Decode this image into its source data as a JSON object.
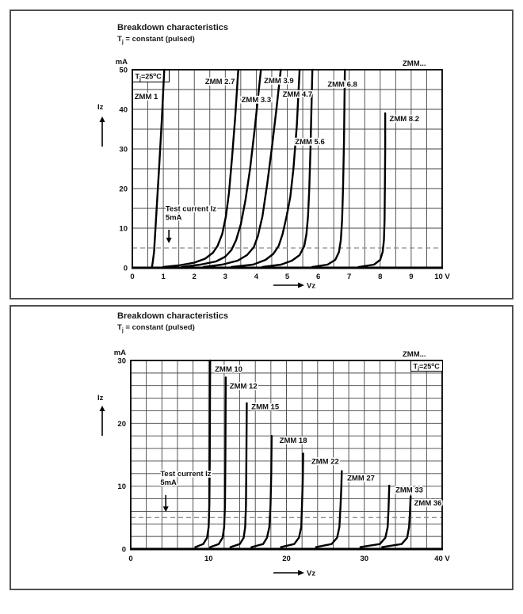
{
  "page": {
    "background": "#ffffff",
    "frame_color": "#4f4f4f",
    "curve_color": "#000000",
    "grid_color": "#454545",
    "dashed_color": "#8c8c8c"
  },
  "panels": [
    {
      "title": "Breakdown characteristics",
      "subtitle": {
        "pre": "T",
        "sub": "j",
        "post": " = constant (pulsed)"
      }
    },
    {
      "title": "Breakdown characteristics",
      "subtitle": {
        "pre": "T",
        "sub": "j",
        "post": " = constant (pulsed)"
      }
    }
  ],
  "chart_data": [
    {
      "type": "line",
      "title": "Breakdown characteristics",
      "subtitle": "Tj = constant (pulsed)",
      "xlabel": "Vz",
      "ylabel": "Iz",
      "x_unit": "V",
      "y_unit": "mA",
      "xlim": [
        0,
        10
      ],
      "ylim": [
        0,
        50
      ],
      "x_grid_step": 0.5,
      "y_grid_step": 5,
      "grid": true,
      "x_ticks": [
        {
          "v": 0,
          "label": "0"
        },
        {
          "v": 1,
          "label": "1"
        },
        {
          "v": 2,
          "label": "2"
        },
        {
          "v": 3,
          "label": "3"
        },
        {
          "v": 4,
          "label": "4"
        },
        {
          "v": 5,
          "label": "5"
        },
        {
          "v": 6,
          "label": "6"
        },
        {
          "v": 7,
          "label": "7"
        },
        {
          "v": 8,
          "label": "8"
        },
        {
          "v": 9,
          "label": "9"
        },
        {
          "v": 10,
          "label": "10"
        }
      ],
      "y_ticks": [
        {
          "v": 0,
          "label": "0"
        },
        {
          "v": 10,
          "label": "10"
        },
        {
          "v": 20,
          "label": "20"
        },
        {
          "v": 30,
          "label": "30"
        },
        {
          "v": 40,
          "label": "40"
        },
        {
          "v": 50,
          "label": "50"
        }
      ],
      "family_label": "ZMM...",
      "temperature_label": {
        "pre": "T",
        "sub": "j",
        "mid": "=25",
        "sup": "o",
        "post": "C",
        "corner": "top-left"
      },
      "test_current": {
        "line1": "Test current Iz",
        "line2": "5mA",
        "y": 5,
        "text_x": 1.07,
        "text_y": 14.3,
        "arrow_x": 1.18,
        "arrow_y1": 9.6,
        "arrow_y2": 6.2
      },
      "series": [
        {
          "name": "ZMM 1",
          "label_x": 0.07,
          "label_y": 43.2,
          "points": [
            [
              0.63,
              0
            ],
            [
              0.66,
              1.5
            ],
            [
              0.7,
              4
            ],
            [
              0.74,
              9
            ],
            [
              0.8,
              17
            ],
            [
              0.87,
              26
            ],
            [
              0.95,
              37
            ],
            [
              1.03,
              50
            ]
          ]
        },
        {
          "name": "ZMM 2.7",
          "label_x": 2.35,
          "label_y": 47.0,
          "points": [
            [
              1.0,
              0.2
            ],
            [
              1.5,
              0.6
            ],
            [
              2.0,
              1.3
            ],
            [
              2.35,
              2.3
            ],
            [
              2.6,
              3.8
            ],
            [
              2.75,
              5.5
            ],
            [
              2.9,
              8.5
            ],
            [
              3.02,
              13
            ],
            [
              3.12,
              19
            ],
            [
              3.22,
              28
            ],
            [
              3.32,
              38
            ],
            [
              3.42,
              50
            ]
          ]
        },
        {
          "name": "ZMM 3.3",
          "label_x": 3.52,
          "label_y": 42.4,
          "points": [
            [
              1.6,
              0.2
            ],
            [
              2.2,
              0.8
            ],
            [
              2.7,
              1.6
            ],
            [
              3.0,
              2.8
            ],
            [
              3.2,
              4.5
            ],
            [
              3.35,
              7
            ],
            [
              3.5,
              11
            ],
            [
              3.65,
              17
            ],
            [
              3.8,
              25
            ],
            [
              3.95,
              35
            ],
            [
              4.15,
              50
            ]
          ]
        },
        {
          "name": "ZMM 3.9",
          "label_x": 4.25,
          "label_y": 47.2,
          "points": [
            [
              2.3,
              0.2
            ],
            [
              2.9,
              0.8
            ],
            [
              3.4,
              1.8
            ],
            [
              3.7,
              3.2
            ],
            [
              3.92,
              5.2
            ],
            [
              4.05,
              8
            ],
            [
              4.2,
              13
            ],
            [
              4.35,
              21
            ],
            [
              4.5,
              30
            ],
            [
              4.65,
              40
            ],
            [
              4.79,
              50
            ]
          ]
        },
        {
          "name": "ZMM 4.7",
          "label_x": 4.85,
          "label_y": 43.8,
          "points": [
            [
              3.2,
              0.2
            ],
            [
              3.9,
              0.8
            ],
            [
              4.3,
              2
            ],
            [
              4.55,
              3.5
            ],
            [
              4.72,
              5.5
            ],
            [
              4.85,
              8.5
            ],
            [
              4.98,
              13
            ],
            [
              5.1,
              18
            ],
            [
              5.2,
              25
            ],
            [
              5.31,
              36
            ],
            [
              5.4,
              50
            ]
          ]
        },
        {
          "name": "ZMM 5.6",
          "label_x": 5.25,
          "label_y": 31.8,
          "points": [
            [
              4.2,
              0.2
            ],
            [
              4.8,
              0.8
            ],
            [
              5.15,
              1.8
            ],
            [
              5.4,
              3.2
            ],
            [
              5.55,
              5.5
            ],
            [
              5.62,
              8.5
            ],
            [
              5.67,
              13
            ],
            [
              5.71,
              20
            ],
            [
              5.75,
              30
            ],
            [
              5.78,
              40
            ],
            [
              5.81,
              50
            ]
          ]
        },
        {
          "name": "ZMM 6.8",
          "label_x": 6.3,
          "label_y": 46.3,
          "points": [
            [
              5.8,
              0.2
            ],
            [
              6.3,
              0.8
            ],
            [
              6.55,
              2
            ],
            [
              6.67,
              4
            ],
            [
              6.73,
              7
            ],
            [
              6.77,
              12
            ],
            [
              6.8,
              20
            ],
            [
              6.83,
              32
            ],
            [
              6.86,
              50
            ]
          ]
        },
        {
          "name": "ZMM 8.2",
          "label_x": 8.3,
          "label_y": 37.6,
          "points": [
            [
              7.3,
              0.2
            ],
            [
              7.8,
              0.8
            ],
            [
              8.0,
              2
            ],
            [
              8.08,
              4
            ],
            [
              8.12,
              7
            ],
            [
              8.14,
              12
            ],
            [
              8.15,
              20
            ],
            [
              8.16,
              30
            ],
            [
              8.16,
              39
            ]
          ]
        }
      ]
    },
    {
      "type": "line",
      "title": "Breakdown characteristics",
      "subtitle": "Tj = constant (pulsed)",
      "xlabel": "Vz",
      "ylabel": "Iz",
      "x_unit": "V",
      "y_unit": "mA",
      "xlim": [
        0,
        40
      ],
      "ylim": [
        0,
        30
      ],
      "x_grid_step": 2,
      "y_grid_step": 2,
      "grid": true,
      "x_ticks": [
        {
          "v": 0,
          "label": "0"
        },
        {
          "v": 10,
          "label": "10"
        },
        {
          "v": 20,
          "label": "20"
        },
        {
          "v": 30,
          "label": "30"
        },
        {
          "v": 40,
          "label": "40"
        }
      ],
      "y_ticks": [
        {
          "v": 0,
          "label": "0"
        },
        {
          "v": 10,
          "label": "10"
        },
        {
          "v": 20,
          "label": "20"
        },
        {
          "v": 30,
          "label": "30"
        }
      ],
      "family_label": "ZMM...",
      "temperature_label": {
        "pre": "T",
        "sub": "j",
        "mid": "=25",
        "sup": "o",
        "post": "C",
        "corner": "top-right"
      },
      "test_current": {
        "line1": "Test current Iz",
        "line2": "5mA",
        "y": 5,
        "text_x": 3.8,
        "text_y": 11.6,
        "arrow_x": 4.5,
        "arrow_y1": 8.6,
        "arrow_y2": 5.9
      },
      "series": [
        {
          "name": "ZMM 10",
          "label_x": 10.8,
          "label_y": 28.6,
          "points": [
            [
              8.3,
              0.3
            ],
            [
              9.3,
              0.8
            ],
            [
              9.8,
              1.8
            ],
            [
              10.0,
              3.5
            ],
            [
              10.1,
              7
            ],
            [
              10.15,
              14
            ],
            [
              10.2,
              30
            ]
          ]
        },
        {
          "name": "ZMM 12",
          "label_x": 12.7,
          "label_y": 25.9,
          "points": [
            [
              10.2,
              0.3
            ],
            [
              11.3,
              0.8
            ],
            [
              11.8,
              1.8
            ],
            [
              12.0,
              3.5
            ],
            [
              12.1,
              7
            ],
            [
              12.15,
              14
            ],
            [
              12.2,
              27.3
            ]
          ]
        },
        {
          "name": "ZMM 15",
          "label_x": 15.5,
          "label_y": 22.6,
          "points": [
            [
              12.8,
              0.3
            ],
            [
              14.0,
              0.8
            ],
            [
              14.5,
              1.8
            ],
            [
              14.7,
              3.5
            ],
            [
              14.8,
              7
            ],
            [
              14.85,
              14
            ],
            [
              14.9,
              23.2
            ]
          ]
        },
        {
          "name": "ZMM 18",
          "label_x": 19.1,
          "label_y": 17.3,
          "points": [
            [
              15.5,
              0.3
            ],
            [
              17.0,
              0.8
            ],
            [
              17.5,
              1.8
            ],
            [
              17.8,
              3.5
            ],
            [
              17.95,
              7
            ],
            [
              18.05,
              12
            ],
            [
              18.1,
              18
            ]
          ]
        },
        {
          "name": "ZMM 22",
          "label_x": 23.2,
          "label_y": 13.9,
          "points": [
            [
              19.3,
              0.3
            ],
            [
              21.0,
              0.8
            ],
            [
              21.6,
              1.8
            ],
            [
              21.9,
              3.5
            ],
            [
              22.0,
              7
            ],
            [
              22.1,
              11
            ],
            [
              22.15,
              15.2
            ]
          ]
        },
        {
          "name": "ZMM 27",
          "label_x": 27.8,
          "label_y": 11.3,
          "points": [
            [
              23.8,
              0.3
            ],
            [
              25.8,
              0.8
            ],
            [
              26.5,
              1.8
            ],
            [
              26.8,
              3.5
            ],
            [
              26.95,
              7
            ],
            [
              27.05,
              10
            ],
            [
              27.1,
              12.4
            ]
          ]
        },
        {
          "name": "ZMM 33",
          "label_x": 34.0,
          "label_y": 9.4,
          "points": [
            [
              29.5,
              0.3
            ],
            [
              32.0,
              0.8
            ],
            [
              32.7,
              1.8
            ],
            [
              33.0,
              3.5
            ],
            [
              33.1,
              6
            ],
            [
              33.15,
              8
            ],
            [
              33.2,
              10.1
            ]
          ]
        },
        {
          "name": "ZMM 36",
          "label_x": 36.4,
          "label_y": 7.3,
          "points": [
            [
              32.3,
              0.3
            ],
            [
              34.8,
              0.8
            ],
            [
              35.5,
              1.8
            ],
            [
              35.75,
              3.5
            ],
            [
              35.85,
              5.5
            ],
            [
              35.9,
              7
            ],
            [
              35.95,
              8.4
            ]
          ]
        }
      ]
    }
  ]
}
